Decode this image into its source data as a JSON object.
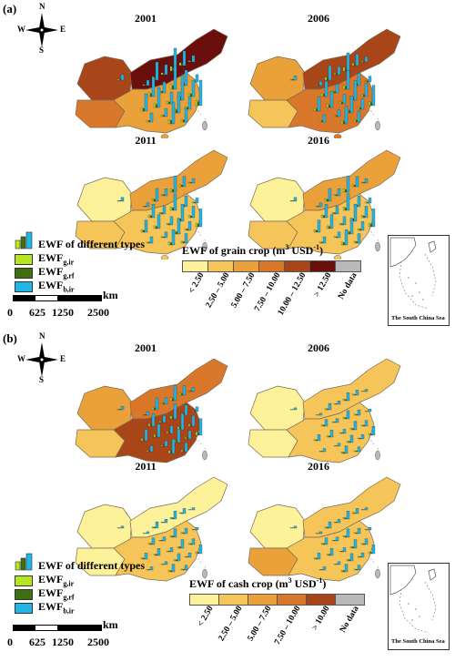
{
  "panel_a": {
    "label": "(a)",
    "years": [
      "2001",
      "2006",
      "2011",
      "2016"
    ],
    "legend_title": "EWF of grain crop (m",
    "legend_title_sup": "3",
    "legend_title_mid": " USD",
    "legend_title_sup2": "-1",
    "legend_title_end": ")",
    "classes": [
      "< 2.50",
      "2.50 – 5.00",
      "5.00 – 7.50",
      "7.50 – 10.00",
      "10.00 – 12.50",
      "> 12.50",
      "No data"
    ],
    "class_colors": [
      "#fdf19a",
      "#f6c55a",
      "#eaa13a",
      "#d9782a",
      "#a8461a",
      "#6b0f0c",
      "#b9b9b9"
    ],
    "map_colors": {
      "2001": [
        "#a8461a",
        "#d9782a",
        "#6b0f0c",
        "#eaa13a"
      ],
      "2006": [
        "#eaa13a",
        "#f6c55a",
        "#a8461a",
        "#d9782a"
      ],
      "2011": [
        "#fdf19a",
        "#f6c55a",
        "#eaa13a",
        "#f6c55a"
      ],
      "2016": [
        "#fdf19a",
        "#f6c55a",
        "#eaa13a",
        "#f6c55a"
      ]
    }
  },
  "panel_b": {
    "label": "(b)",
    "years": [
      "2001",
      "2006",
      "2011",
      "2016"
    ],
    "legend_title": "EWF of cash crop (m",
    "legend_title_sup": "3",
    "legend_title_mid": " USD",
    "legend_title_sup2": "-1",
    "legend_title_end": ")",
    "classes": [
      "< 2.50",
      "2.50 – 5.00",
      "5.00 – 7.50",
      "7.50 – 10.00",
      "> 10.00",
      "No data"
    ],
    "class_colors": [
      "#fdf19a",
      "#f6c55a",
      "#eaa13a",
      "#d9782a",
      "#a8461a",
      "#b9b9b9"
    ],
    "map_colors": {
      "2001": [
        "#eaa13a",
        "#f6c55a",
        "#d9782a",
        "#a8461a"
      ],
      "2006": [
        "#fdf19a",
        "#fdf19a",
        "#f6c55a",
        "#f6c55a"
      ],
      "2011": [
        "#fdf19a",
        "#fdf19a",
        "#fdf19a",
        "#f6c55a"
      ],
      "2016": [
        "#fdf19a",
        "#eaa13a",
        "#f6c55a",
        "#f6c55a"
      ]
    }
  },
  "types_legend": {
    "title": "EWF of different types",
    "items": [
      {
        "base": "EWF",
        "sub": "g,ir",
        "color": "#b7e61e"
      },
      {
        "base": "EWF",
        "sub": "g,rf",
        "color": "#3f6f10"
      },
      {
        "base": "EWF",
        "sub": "b,ir",
        "color": "#1fb7e8"
      }
    ]
  },
  "scale_bar": {
    "unit": "km",
    "ticks": [
      "0",
      "625",
      "1250",
      "2500"
    ]
  },
  "compass": {
    "n": "N",
    "s": "S",
    "e": "E",
    "w": "W"
  },
  "inset_label": "The South China Sea"
}
